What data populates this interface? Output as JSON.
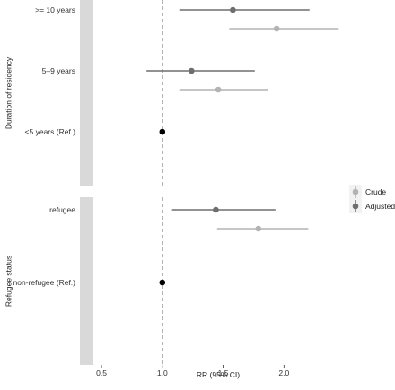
{
  "chart_data": {
    "type": "forest",
    "xlabel": "RR (95% CI)",
    "xlim": [
      0.33,
      2.47
    ],
    "x_ticks": [
      0.5,
      1.0,
      1.5,
      2.0
    ],
    "x_tick_labels": [
      "0.5",
      "1.0",
      "1.5",
      "2.0"
    ],
    "reference_line": 1.0,
    "colors": {
      "Crude": "#b3b3b3",
      "Adjusted": "#6e6e6e",
      "Reference": "#000000",
      "strip": "#d9d9d9"
    },
    "legend": {
      "position": "right",
      "entries": [
        "Crude",
        "Adjusted"
      ]
    },
    "panels": [
      {
        "strip_label": "Duration of residency",
        "rows": [
          {
            "label": ">= 10 years",
            "estimates": [
              {
                "series": "Adjusted",
                "rr": 1.58,
                "lower": 1.14,
                "upper": 2.21
              },
              {
                "series": "Crude",
                "rr": 1.94,
                "lower": 1.55,
                "upper": 2.45
              }
            ]
          },
          {
            "label": "5–9 years",
            "estimates": [
              {
                "series": "Adjusted",
                "rr": 1.24,
                "lower": 0.87,
                "upper": 1.76
              },
              {
                "series": "Crude",
                "rr": 1.46,
                "lower": 1.14,
                "upper": 1.87
              }
            ]
          },
          {
            "label": "<5 years (Ref.)",
            "estimates": [
              {
                "series": "Reference",
                "rr": 1.0,
                "lower": 1.0,
                "upper": 1.0
              }
            ]
          }
        ]
      },
      {
        "strip_label": "Refugee status",
        "rows": [
          {
            "label": "refugee",
            "estimates": [
              {
                "series": "Adjusted",
                "rr": 1.44,
                "lower": 1.08,
                "upper": 1.93
              },
              {
                "series": "Crude",
                "rr": 1.79,
                "lower": 1.45,
                "upper": 2.2
              }
            ]
          },
          {
            "label": "non-refugee (Ref.)",
            "estimates": [
              {
                "series": "Reference",
                "rr": 1.0,
                "lower": 1.0,
                "upper": 1.0
              }
            ]
          }
        ]
      }
    ]
  }
}
